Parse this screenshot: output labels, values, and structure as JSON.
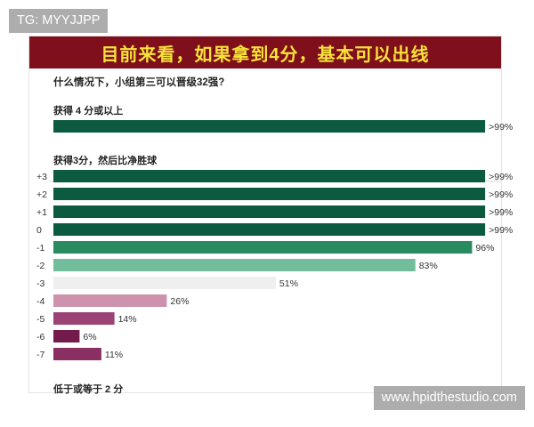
{
  "watermarks": {
    "top_left": "TG: MYYJJPP",
    "bottom_right": "www.hpidthestudio.com"
  },
  "banner": {
    "title": "目前来看，如果拿到4分，基本可以出线"
  },
  "question": "什么情况下，小组第三可以晋级32强?",
  "chart_data": {
    "type": "bar",
    "orientation": "horizontal",
    "xlim": [
      0,
      100
    ],
    "sections": [
      {
        "title": "获得 4 分或以上",
        "bars": [
          {
            "category": "",
            "value": 99,
            "label": ">99%",
            "color": "#0c5a40"
          }
        ]
      },
      {
        "title": "获得3分，然后比净胜球",
        "bars": [
          {
            "category": "+3",
            "value": 99,
            "label": ">99%",
            "color": "#0c5a40"
          },
          {
            "category": "+2",
            "value": 99,
            "label": ">99%",
            "color": "#0c5a40"
          },
          {
            "category": "+1",
            "value": 99,
            "label": ">99%",
            "color": "#0c5a40"
          },
          {
            "category": "0",
            "value": 99,
            "label": ">99%",
            "color": "#0c5a40"
          },
          {
            "category": "-1",
            "value": 96,
            "label": "96%",
            "color": "#2a8a60"
          },
          {
            "category": "-2",
            "value": 83,
            "label": "83%",
            "color": "#72bd9c"
          },
          {
            "category": "-3",
            "value": 51,
            "label": "51%",
            "color": "#efefef"
          },
          {
            "category": "-4",
            "value": 26,
            "label": "26%",
            "color": "#cd93ad"
          },
          {
            "category": "-5",
            "value": 14,
            "label": "14%",
            "color": "#9a4374"
          },
          {
            "category": "-6",
            "value": 6,
            "label": "6%",
            "color": "#731c4c"
          },
          {
            "category": "-7",
            "value": 11,
            "label": "11%",
            "color": "#8a2f62"
          }
        ]
      },
      {
        "title": "低于或等于 2 分",
        "bars": []
      }
    ]
  }
}
